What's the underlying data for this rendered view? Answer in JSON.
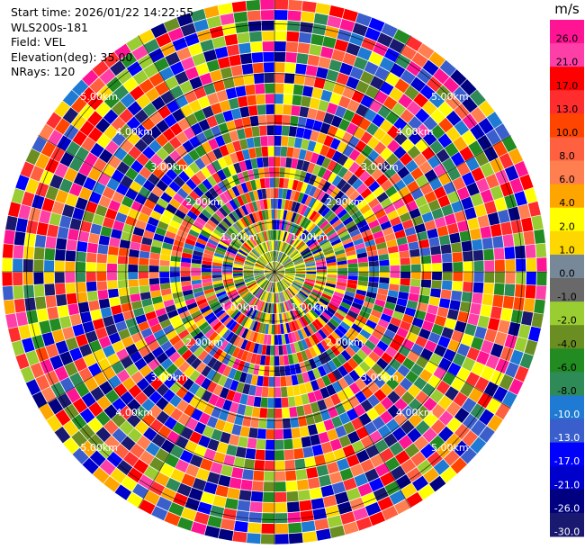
{
  "header": {
    "start_time": "Start time: 2026/01/22 14:22:55",
    "instrument": "WLS200s-181",
    "field": "Field: VEL",
    "elevation": "Elevation(deg): 35.00",
    "nrays": "NRays: 120"
  },
  "chart_data": {
    "type": "heatmap",
    "projection": "polar-ppi",
    "field": "VEL",
    "unit": "m/s",
    "n_rays": 120,
    "elevation_deg": 35.0,
    "range_rings": [
      {
        "label": "1.00km",
        "range_km": 1.0
      },
      {
        "label": "2.00km",
        "range_km": 2.0
      },
      {
        "label": "3.00km",
        "range_km": 3.0
      },
      {
        "label": "4.00km",
        "range_km": 4.0
      },
      {
        "label": "5.00km",
        "range_km": 5.0
      }
    ],
    "max_range_km": 5.5,
    "colorbar": {
      "unit_label": "m/s",
      "ticks": [
        "26.0",
        "21.0",
        "17.0",
        "13.0",
        "10.0",
        "8.0",
        "6.0",
        "4.0",
        "2.0",
        "1.0",
        "0.0",
        "-1.0",
        "-2.0",
        "-4.0",
        "-6.0",
        "-8.0",
        "-10.0",
        "-13.0",
        "-17.0",
        "-21.0",
        "-26.0",
        "-30.0"
      ],
      "bins": [
        {
          "range": [
            26.0,
            30.0
          ],
          "color": "#ff1493"
        },
        {
          "range": [
            21.0,
            26.0
          ],
          "color": "#ff3fa8"
        },
        {
          "range": [
            17.0,
            21.0
          ],
          "color": "#ff0000"
        },
        {
          "range": [
            13.0,
            17.0
          ],
          "color": "#ff2d2d"
        },
        {
          "range": [
            10.0,
            13.0
          ],
          "color": "#ff4500"
        },
        {
          "range": [
            8.0,
            10.0
          ],
          "color": "#ff6040"
        },
        {
          "range": [
            6.0,
            8.0
          ],
          "color": "#ff7f50"
        },
        {
          "range": [
            4.0,
            6.0
          ],
          "color": "#ffa500"
        },
        {
          "range": [
            2.0,
            4.0
          ],
          "color": "#ffff00"
        },
        {
          "range": [
            1.0,
            2.0
          ],
          "color": "#ffd700"
        },
        {
          "range": [
            0.0,
            1.0
          ],
          "color": "#778899"
        },
        {
          "range": [
            -1.0,
            0.0
          ],
          "color": "#696969"
        },
        {
          "range": [
            -2.0,
            -1.0
          ],
          "color": "#9acd32"
        },
        {
          "range": [
            -4.0,
            -2.0
          ],
          "color": "#6b8e23"
        },
        {
          "range": [
            -6.0,
            -4.0
          ],
          "color": "#228b22"
        },
        {
          "range": [
            -8.0,
            -6.0
          ],
          "color": "#2e8b57"
        },
        {
          "range": [
            -10.0,
            -8.0
          ],
          "color": "#1e7ad2"
        },
        {
          "range": [
            -13.0,
            -10.0
          ],
          "color": "#3a5fcd"
        },
        {
          "range": [
            -17.0,
            -13.0
          ],
          "color": "#0000ff"
        },
        {
          "range": [
            -21.0,
            -17.0
          ],
          "color": "#0000cd"
        },
        {
          "range": [
            -26.0,
            -21.0
          ],
          "color": "#000080"
        },
        {
          "range": [
            -30.0,
            -26.0
          ],
          "color": "#191970"
        }
      ]
    },
    "grid": true,
    "spokes_deg": 30
  }
}
